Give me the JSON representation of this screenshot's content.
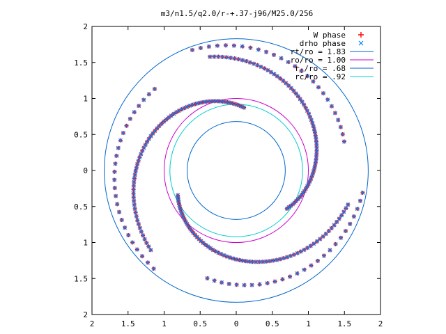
{
  "chart_data": {
    "type": "scatter",
    "title": "m3/n1.5/q2.0/r-+.37-j96/M25.0/256",
    "xlim": [
      2,
      -2
    ],
    "ylim": [
      -2,
      2
    ],
    "x_ticks": [
      2,
      1.5,
      1,
      0.5,
      0,
      0.5,
      1,
      1.5,
      2
    ],
    "y_ticks": [
      2,
      1.5,
      1,
      0.5,
      0,
      0.5,
      1,
      1.5,
      2
    ],
    "x_tick_values": [
      -2,
      -1.5,
      -1,
      -0.5,
      0,
      0.5,
      1,
      1.5,
      2
    ],
    "y_tick_values": [
      2,
      1.5,
      1,
      0.5,
      0,
      -0.5,
      -1,
      -1.5,
      -2
    ],
    "legend_position": "top-right",
    "grid": false,
    "series": [
      {
        "name": "W phase",
        "kind": "points",
        "marker": "plus",
        "color": "#ff0000"
      },
      {
        "name": "drho phase",
        "kind": "points",
        "marker": "cross",
        "color": "#0080ff"
      },
      {
        "name": "rt/ro = 1.83",
        "kind": "circle",
        "radius": 1.83,
        "color": "#0066cc"
      },
      {
        "name": "ro/ro = 1.00",
        "kind": "circle",
        "radius": 1.0,
        "color": "#cc00cc"
      },
      {
        "name": "r-/ro = .68",
        "kind": "circle",
        "radius": 0.68,
        "color": "#0066cc"
      },
      {
        "name": "rc/ro = .92",
        "kind": "circle",
        "radius": 0.92,
        "color": "#00cccc"
      }
    ],
    "spiral_arms": [
      {
        "r_start": 0.88,
        "r_end": 1.62,
        "theta_start_deg": 83,
        "sweep_deg": 140,
        "samples": 70
      },
      {
        "r_start": 0.88,
        "r_end": 1.62,
        "theta_start_deg": 203,
        "sweep_deg": 140,
        "samples": 70
      },
      {
        "r_start": 0.88,
        "r_end": 1.62,
        "theta_start_deg": 323,
        "sweep_deg": 140,
        "samples": 70
      },
      {
        "r_start": 1.6,
        "r_end": 1.78,
        "theta_start_deg": 135,
        "sweep_deg": 95,
        "samples": 26
      },
      {
        "r_start": 1.55,
        "r_end": 1.78,
        "theta_start_deg": 255,
        "sweep_deg": 95,
        "samples": 26
      },
      {
        "r_start": 1.55,
        "r_end": 1.78,
        "theta_start_deg": 15,
        "sweep_deg": 95,
        "samples": 26
      }
    ]
  }
}
